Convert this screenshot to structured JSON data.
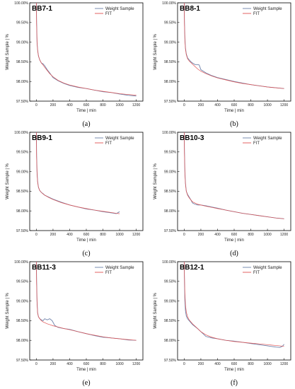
{
  "chart_data": [
    {
      "type": "line",
      "title": "BB7-1",
      "caption": "(a)",
      "xlabel": "Time | min",
      "ylabel": "Weight Sample | %",
      "xlim": [
        -80,
        1280
      ],
      "ylim": [
        97.5,
        100.0
      ],
      "xticks": [
        "0",
        "200",
        "400",
        "600",
        "800",
        "1000",
        "1200"
      ],
      "yticks": [
        "97.50%",
        "98.00%",
        "98.50%",
        "99.00%",
        "99.50%",
        "100.00%"
      ],
      "legend": "top-right",
      "series": [
        {
          "name": "Weight Sample",
          "color": "#6b7fa8",
          "x": [
            0,
            3,
            8,
            15,
            25,
            40,
            60,
            80,
            100,
            130,
            160,
            200,
            260,
            330,
            400,
            500,
            600,
            700,
            800,
            900,
            1000,
            1100,
            1200
          ],
          "y": [
            100.0,
            99.5,
            99.0,
            98.8,
            98.65,
            98.55,
            98.47,
            98.45,
            98.4,
            98.3,
            98.22,
            98.1,
            98.02,
            97.95,
            97.9,
            97.85,
            97.82,
            97.78,
            97.74,
            97.72,
            97.68,
            97.65,
            97.63
          ]
        },
        {
          "name": "FIT",
          "color": "#e05050",
          "x": [
            0,
            3,
            8,
            15,
            25,
            40,
            60,
            80,
            100,
            130,
            160,
            200,
            260,
            330,
            400,
            500,
            600,
            700,
            800,
            900,
            1000,
            1100,
            1200
          ],
          "y": [
            100.0,
            99.45,
            99.0,
            98.8,
            98.65,
            98.55,
            98.47,
            98.42,
            98.36,
            98.28,
            98.2,
            98.12,
            98.03,
            97.96,
            97.91,
            97.86,
            97.82,
            97.78,
            97.75,
            97.72,
            97.69,
            97.67,
            97.65
          ]
        }
      ]
    },
    {
      "type": "line",
      "title": "BB8-1",
      "caption": "(b)",
      "xlabel": "Time | min",
      "ylabel": "Weight Sample | %",
      "xlim": [
        -80,
        1280
      ],
      "ylim": [
        97.5,
        100.0
      ],
      "xticks": [
        "0",
        "200",
        "400",
        "600",
        "800",
        "1000",
        "1200"
      ],
      "yticks": [
        "97.50%",
        "98.00%",
        "98.50%",
        "99.00%",
        "99.50%",
        "100.00%"
      ],
      "legend": "top-right",
      "series": [
        {
          "name": "Weight Sample",
          "color": "#6b7fa8",
          "x": [
            0,
            3,
            8,
            15,
            25,
            40,
            60,
            80,
            100,
            130,
            160,
            180,
            200,
            260,
            330,
            400,
            500,
            600,
            700,
            800,
            900,
            1000,
            1100,
            1200
          ],
          "y": [
            100.0,
            99.5,
            99.1,
            98.85,
            98.7,
            98.6,
            98.55,
            98.5,
            98.47,
            98.43,
            98.43,
            98.42,
            98.3,
            98.22,
            98.15,
            98.1,
            98.05,
            98.0,
            97.96,
            97.92,
            97.89,
            97.86,
            97.84,
            97.82
          ]
        },
        {
          "name": "FIT",
          "color": "#e05050",
          "x": [
            0,
            3,
            8,
            15,
            25,
            40,
            60,
            80,
            100,
            130,
            160,
            200,
            260,
            330,
            400,
            500,
            600,
            700,
            800,
            900,
            1000,
            1100,
            1200
          ],
          "y": [
            100.0,
            99.45,
            99.05,
            98.82,
            98.68,
            98.58,
            98.52,
            98.48,
            98.44,
            98.38,
            98.32,
            98.26,
            98.2,
            98.14,
            98.09,
            98.04,
            97.99,
            97.95,
            97.92,
            97.89,
            97.86,
            97.84,
            97.82
          ]
        }
      ]
    },
    {
      "type": "line",
      "title": "BB9-1",
      "caption": "(c)",
      "xlabel": "Time | min",
      "ylabel": "Weight Sample | %",
      "xlim": [
        -80,
        1280
      ],
      "ylim": [
        97.5,
        100.0
      ],
      "xticks": [
        "0",
        "200",
        "400",
        "600",
        "800",
        "1000",
        "1200"
      ],
      "yticks": [
        "97.50%",
        "98.00%",
        "98.50%",
        "99.00%",
        "99.50%",
        "100.00%"
      ],
      "legend": "top-right",
      "series": [
        {
          "name": "Weight Sample",
          "color": "#6b7fa8",
          "x": [
            0,
            3,
            8,
            15,
            25,
            40,
            60,
            80,
            100,
            150,
            200,
            300,
            400,
            500,
            600,
            700,
            800,
            900,
            960,
            1000
          ],
          "y": [
            100.0,
            99.4,
            99.0,
            98.75,
            98.6,
            98.52,
            98.47,
            98.44,
            98.4,
            98.35,
            98.3,
            98.22,
            98.15,
            98.1,
            98.05,
            98.02,
            97.98,
            97.95,
            97.93,
            97.98
          ]
        },
        {
          "name": "FIT",
          "color": "#e05050",
          "x": [
            0,
            3,
            8,
            15,
            25,
            40,
            60,
            80,
            100,
            150,
            200,
            300,
            400,
            500,
            600,
            700,
            800,
            900,
            960,
            1000
          ],
          "y": [
            100.0,
            99.35,
            98.95,
            98.73,
            98.6,
            98.52,
            98.47,
            98.43,
            98.4,
            98.34,
            98.29,
            98.21,
            98.15,
            98.1,
            98.06,
            98.02,
            97.99,
            97.96,
            97.94,
            97.93
          ]
        }
      ]
    },
    {
      "type": "line",
      "title": "BB10-3",
      "caption": "(d)",
      "xlabel": "Time | min",
      "ylabel": "Weight Sample | %",
      "xlim": [
        -80,
        1280
      ],
      "ylim": [
        97.5,
        100.0
      ],
      "xticks": [
        "0",
        "200",
        "400",
        "600",
        "800",
        "1000",
        "1200"
      ],
      "yticks": [
        "97.50%",
        "98.00%",
        "98.50%",
        "99.00%",
        "99.50%",
        "100.00%"
      ],
      "legend": "top-right",
      "series": [
        {
          "name": "Weight Sample",
          "color": "#6b7fa8",
          "x": [
            0,
            3,
            8,
            15,
            25,
            40,
            60,
            80,
            100,
            130,
            160,
            200,
            260,
            330,
            400,
            500,
            600,
            700,
            800,
            900,
            1000,
            1100,
            1200
          ],
          "y": [
            100.0,
            99.5,
            99.0,
            98.7,
            98.5,
            98.42,
            98.35,
            98.28,
            98.2,
            98.17,
            98.15,
            98.15,
            98.13,
            98.1,
            98.07,
            98.02,
            97.98,
            97.94,
            97.91,
            97.88,
            97.85,
            97.82,
            97.8
          ]
        },
        {
          "name": "FIT",
          "color": "#e05050",
          "x": [
            0,
            3,
            8,
            15,
            25,
            40,
            60,
            80,
            100,
            130,
            160,
            200,
            260,
            330,
            400,
            500,
            600,
            700,
            800,
            900,
            1000,
            1100,
            1200
          ],
          "y": [
            100.0,
            99.45,
            98.95,
            98.68,
            98.5,
            98.4,
            98.33,
            98.28,
            98.23,
            98.2,
            98.17,
            98.15,
            98.12,
            98.09,
            98.06,
            98.02,
            97.98,
            97.94,
            97.91,
            97.88,
            97.85,
            97.82,
            97.8
          ]
        }
      ]
    },
    {
      "type": "line",
      "title": "BB11-3",
      "caption": "(e)",
      "xlabel": "Time | min",
      "ylabel": "Weight Sample | %",
      "xlim": [
        -80,
        1280
      ],
      "ylim": [
        97.5,
        100.0
      ],
      "xticks": [
        "0",
        "200",
        "400",
        "600",
        "800",
        "1000",
        "1200"
      ],
      "yticks": [
        "97.50%",
        "98.00%",
        "98.50%",
        "99.00%",
        "99.50%",
        "100.00%"
      ],
      "legend": "top-right",
      "series": [
        {
          "name": "Weight Sample",
          "color": "#6b7fa8",
          "x": [
            0,
            3,
            8,
            15,
            25,
            40,
            60,
            80,
            100,
            130,
            160,
            190,
            220,
            260,
            330,
            400,
            500,
            600,
            700,
            800,
            900,
            1000,
            1100,
            1200
          ],
          "y": [
            100.0,
            99.5,
            99.0,
            98.7,
            98.6,
            98.55,
            98.52,
            98.5,
            98.55,
            98.52,
            98.55,
            98.5,
            98.38,
            98.33,
            98.3,
            98.28,
            98.22,
            98.17,
            98.12,
            98.08,
            98.06,
            98.04,
            98.01,
            98.0
          ]
        },
        {
          "name": "FIT",
          "color": "#e05050",
          "x": [
            0,
            3,
            8,
            15,
            25,
            40,
            60,
            80,
            100,
            130,
            160,
            200,
            260,
            330,
            400,
            500,
            600,
            700,
            800,
            900,
            1000,
            1100,
            1200
          ],
          "y": [
            100.0,
            99.45,
            98.95,
            98.7,
            98.6,
            98.55,
            98.5,
            98.47,
            98.45,
            98.42,
            98.4,
            98.37,
            98.34,
            98.3,
            98.27,
            98.22,
            98.17,
            98.13,
            98.09,
            98.06,
            98.04,
            98.02,
            98.0
          ]
        }
      ]
    },
    {
      "type": "line",
      "title": "BB12-1",
      "caption": "(f)",
      "xlabel": "Time | min",
      "ylabel": "Weight Sample | %",
      "xlim": [
        -80,
        1280
      ],
      "ylim": [
        97.5,
        100.0
      ],
      "xticks": [
        "0",
        "200",
        "400",
        "600",
        "800",
        "1000",
        "1200"
      ],
      "yticks": [
        "97.50%",
        "98.00%",
        "98.50%",
        "99.00%",
        "99.50%",
        "100.00%"
      ],
      "legend": "top-right",
      "series": [
        {
          "name": "Weight Sample",
          "color": "#6b7fa8",
          "x": [
            0,
            3,
            8,
            15,
            25,
            40,
            60,
            80,
            100,
            130,
            160,
            200,
            260,
            330,
            400,
            500,
            600,
            700,
            800,
            900,
            1000,
            1100,
            1150,
            1180,
            1200
          ],
          "y": [
            100.0,
            99.5,
            99.0,
            98.75,
            98.62,
            98.55,
            98.5,
            98.45,
            98.4,
            98.35,
            98.3,
            98.22,
            98.1,
            98.06,
            98.04,
            98.0,
            97.98,
            97.95,
            97.92,
            97.89,
            97.86,
            97.83,
            97.82,
            97.85,
            97.9
          ]
        },
        {
          "name": "FIT",
          "color": "#e05050",
          "x": [
            0,
            3,
            8,
            15,
            25,
            40,
            60,
            80,
            100,
            130,
            160,
            200,
            260,
            330,
            400,
            500,
            600,
            700,
            800,
            900,
            1000,
            1100,
            1200
          ],
          "y": [
            100.0,
            99.6,
            99.2,
            98.9,
            98.72,
            98.6,
            98.52,
            98.47,
            98.42,
            98.36,
            98.3,
            98.22,
            98.14,
            98.08,
            98.04,
            98.0,
            97.97,
            97.95,
            97.93,
            97.91,
            97.89,
            97.87,
            97.85
          ]
        }
      ]
    }
  ]
}
